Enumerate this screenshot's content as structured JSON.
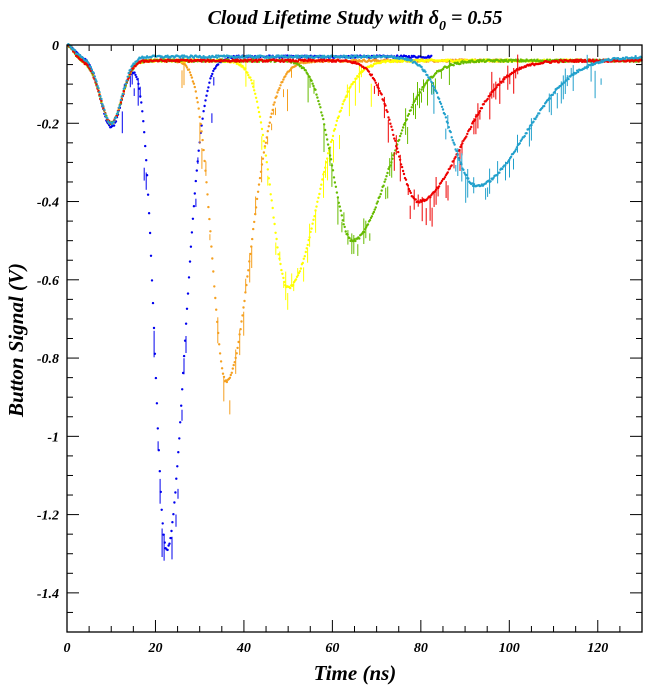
{
  "chart_data": {
    "type": "scatter",
    "title_main": "Cloud Lifetime Study with δ",
    "title_sub": "0",
    "title_end": " = 0.55",
    "xlabel": "Time (ns)",
    "ylabel": "Button Signal (V)",
    "xlim": [
      0,
      130
    ],
    "ylim": [
      -1.5,
      0
    ],
    "x_ticks": [
      0,
      20,
      40,
      60,
      80,
      100,
      120
    ],
    "x_tick_labels": [
      "0",
      "20",
      "40",
      "60",
      "80",
      "100",
      "120"
    ],
    "y_ticks": [
      0,
      -0.2,
      -0.4,
      -0.6,
      -0.8,
      -1,
      -1.2,
      -1.4
    ],
    "y_tick_labels": [
      "0",
      "-0.2",
      "-0.4",
      "-0.6",
      "-0.8",
      "-1",
      "-1.2",
      "-1.4"
    ],
    "grid": false,
    "legend": "none",
    "series": [
      {
        "color": "#0000ee",
        "first_dip": {
          "x": 10,
          "y": -0.21
        },
        "second_dip": {
          "x": 22.5,
          "y": -1.29
        },
        "baseline": -0.03
      },
      {
        "color": "#f5a020",
        "first_dip": {
          "x": 10,
          "y": -0.2
        },
        "second_dip": {
          "x": 36,
          "y": -0.86
        },
        "baseline": -0.04
      },
      {
        "color": "#ffff00",
        "first_dip": {
          "x": 10,
          "y": -0.2
        },
        "second_dip": {
          "x": 50,
          "y": -0.62
        },
        "baseline": -0.04
      },
      {
        "color": "#66bb00",
        "first_dip": {
          "x": 10,
          "y": -0.2
        },
        "second_dip": {
          "x": 64.5,
          "y": -0.5
        },
        "baseline": -0.04
      },
      {
        "color": "#ee0000",
        "first_dip": {
          "x": 10,
          "y": -0.2
        },
        "second_dip": {
          "x": 79.5,
          "y": -0.4
        },
        "baseline": -0.04
      },
      {
        "color": "#22a0cc",
        "first_dip": {
          "x": 10,
          "y": -0.2
        },
        "second_dip": {
          "x": 92.5,
          "y": -0.36
        },
        "baseline": -0.03
      }
    ]
  }
}
